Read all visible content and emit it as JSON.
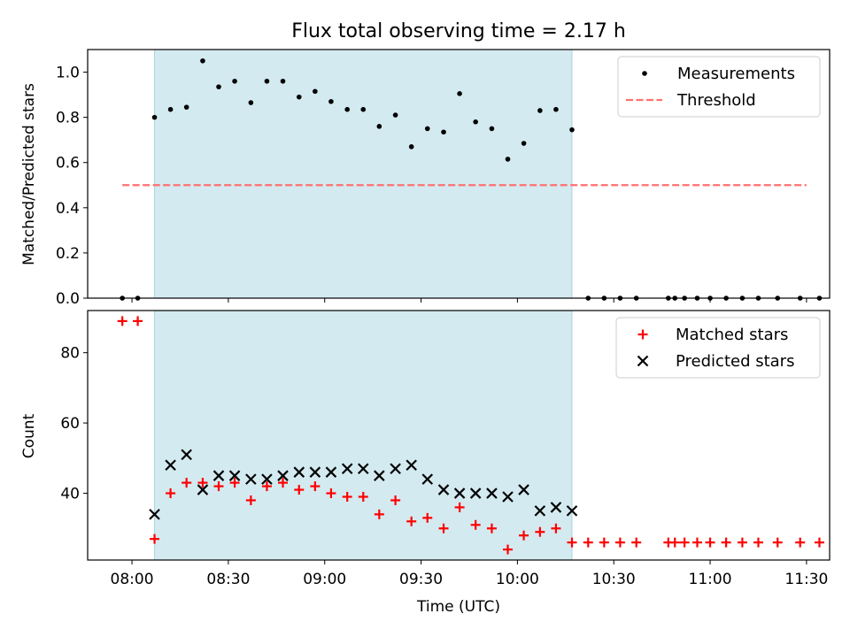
{
  "chart_data": {
    "title": "Flux total observing time = 2.17 h",
    "xlabel": "Time (UTC)",
    "xlim_hours": [
      7.77,
      11.62
    ],
    "x_ticks": [
      {
        "t": 8.0,
        "label": "08:00"
      },
      {
        "t": 8.5,
        "label": "08:30"
      },
      {
        "t": 9.0,
        "label": "09:00"
      },
      {
        "t": 9.5,
        "label": "09:30"
      },
      {
        "t": 10.0,
        "label": "10:00"
      },
      {
        "t": 10.5,
        "label": "10:30"
      },
      {
        "t": 11.0,
        "label": "11:00"
      },
      {
        "t": 11.5,
        "label": "11:30"
      }
    ],
    "shaded_interval_hours": [
      8.117,
      10.283
    ],
    "shade_color": "#d3eaf0",
    "panels": [
      {
        "type": "scatter",
        "ylabel": "Matched/Predicted stars",
        "ylim": [
          0,
          1.1
        ],
        "y_ticks": [
          {
            "v": 0.0,
            "label": "0.0"
          },
          {
            "v": 0.2,
            "label": "0.2"
          },
          {
            "v": 0.4,
            "label": "0.4"
          },
          {
            "v": 0.6,
            "label": "0.6"
          },
          {
            "v": 0.8,
            "label": "0.8"
          },
          {
            "v": 1.0,
            "label": "1.0"
          }
        ],
        "legend": {
          "position": "upper right",
          "entries": [
            {
              "label": "Measurements",
              "marker": "dot",
              "color": "#000000"
            },
            {
              "label": "Threshold",
              "marker": "dashed",
              "color": "#ff7070"
            }
          ]
        },
        "threshold": {
          "value": 0.5,
          "x_range": [
            7.95,
            11.5
          ],
          "color": "#ff7070"
        },
        "series": [
          {
            "name": "Measurements",
            "color": "#000000",
            "x": [
              7.95,
              8.03,
              8.117,
              8.2,
              8.283,
              8.367,
              8.45,
              8.533,
              8.617,
              8.7,
              8.783,
              8.867,
              8.95,
              9.033,
              9.117,
              9.2,
              9.283,
              9.367,
              9.45,
              9.533,
              9.617,
              9.7,
              9.783,
              9.867,
              9.95,
              10.033,
              10.117,
              10.2,
              10.283,
              10.367,
              10.45,
              10.533,
              10.617,
              10.783,
              10.817,
              10.867,
              10.933,
              11.0,
              11.083,
              11.167,
              11.25,
              11.35,
              11.467,
              11.567
            ],
            "y": [
              0.0,
              0.0,
              0.8,
              0.835,
              0.845,
              1.05,
              0.935,
              0.96,
              0.865,
              0.96,
              0.96,
              0.89,
              0.915,
              0.87,
              0.835,
              0.835,
              0.76,
              0.81,
              0.67,
              0.75,
              0.735,
              0.905,
              0.78,
              0.75,
              0.615,
              0.685,
              0.83,
              0.835,
              0.745,
              0.0,
              0.0,
              0.0,
              0.0,
              0.0,
              0.0,
              0.0,
              0.0,
              0.0,
              0.0,
              0.0,
              0.0,
              0.0,
              0.0,
              0.0
            ]
          }
        ]
      },
      {
        "type": "scatter",
        "ylabel": "Count",
        "ylim": [
          21,
          92
        ],
        "y_ticks": [
          {
            "v": 40,
            "label": "40"
          },
          {
            "v": 60,
            "label": "60"
          },
          {
            "v": 80,
            "label": "80"
          }
        ],
        "legend": {
          "position": "upper right",
          "entries": [
            {
              "label": "Matched stars",
              "marker": "plus",
              "color": "#ff0000"
            },
            {
              "label": "Predicted stars",
              "marker": "x",
              "color": "#000000"
            }
          ]
        },
        "series": [
          {
            "name": "Matched stars",
            "marker": "plus",
            "color": "#ff0000",
            "x": [
              7.95,
              8.03,
              8.117,
              8.2,
              8.283,
              8.367,
              8.45,
              8.533,
              8.617,
              8.7,
              8.783,
              8.867,
              8.95,
              9.033,
              9.117,
              9.2,
              9.283,
              9.367,
              9.45,
              9.533,
              9.617,
              9.7,
              9.783,
              9.867,
              9.95,
              10.033,
              10.117,
              10.2,
              10.283,
              10.367,
              10.45,
              10.533,
              10.617,
              10.783,
              10.817,
              10.867,
              10.933,
              11.0,
              11.083,
              11.167,
              11.25,
              11.35,
              11.467,
              11.567
            ],
            "y": [
              89,
              89,
              27,
              40,
              43,
              43,
              42,
              43,
              38,
              42,
              43,
              41,
              42,
              40,
              39,
              39,
              34,
              38,
              32,
              33,
              30,
              36,
              31,
              30,
              24,
              28,
              29,
              30,
              26,
              26,
              26,
              26,
              26,
              26,
              26,
              26,
              26,
              26,
              26,
              26,
              26,
              26,
              26,
              26
            ]
          },
          {
            "name": "Predicted stars",
            "marker": "x",
            "color": "#000000",
            "x": [
              8.117,
              8.2,
              8.283,
              8.367,
              8.45,
              8.533,
              8.617,
              8.7,
              8.783,
              8.867,
              8.95,
              9.033,
              9.117,
              9.2,
              9.283,
              9.367,
              9.45,
              9.533,
              9.617,
              9.7,
              9.783,
              9.867,
              9.95,
              10.033,
              10.117,
              10.2,
              10.283
            ],
            "y": [
              34,
              48,
              51,
              41,
              45,
              45,
              44,
              44,
              45,
              46,
              46,
              46,
              47,
              47,
              45,
              47,
              48,
              44,
              41,
              40,
              40,
              40,
              39,
              41,
              35,
              36,
              35
            ]
          }
        ]
      }
    ]
  }
}
